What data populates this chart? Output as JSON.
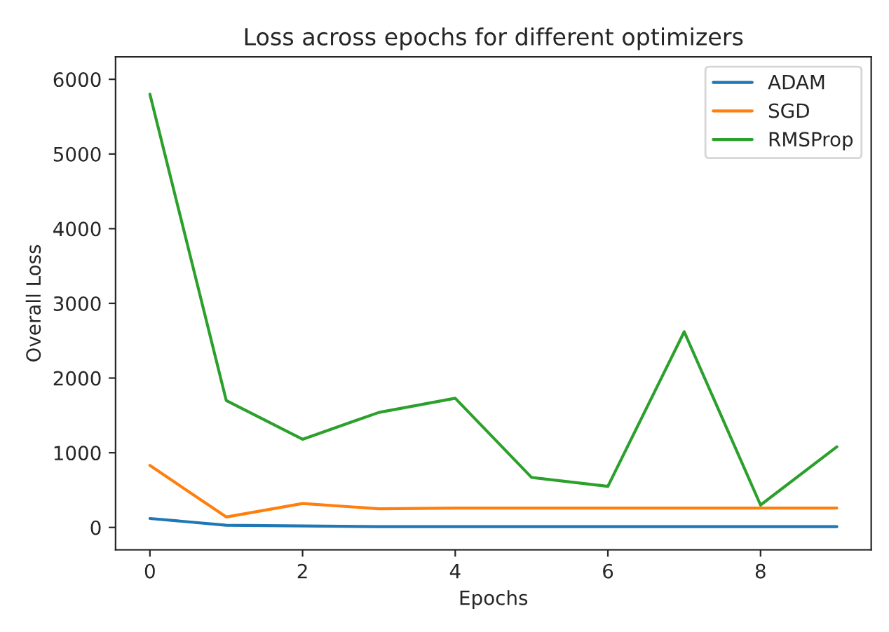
{
  "chart_data": {
    "type": "line",
    "title": "Loss across epochs for different optimizers",
    "xlabel": "Epochs",
    "ylabel": "Overall Loss",
    "x": [
      0,
      1,
      2,
      3,
      4,
      5,
      6,
      7,
      8,
      9
    ],
    "series": [
      {
        "name": "ADAM",
        "color": "#1f77b4",
        "values": [
          120,
          30,
          20,
          10,
          10,
          10,
          10,
          10,
          10,
          10
        ]
      },
      {
        "name": "SGD",
        "color": "#ff7f0e",
        "values": [
          830,
          140,
          320,
          250,
          260,
          260,
          260,
          260,
          260,
          260
        ]
      },
      {
        "name": "RMSProp",
        "color": "#2ca02c",
        "values": [
          5800,
          1700,
          1180,
          1540,
          1730,
          670,
          550,
          2620,
          300,
          1080
        ]
      }
    ],
    "xlim": [
      -0.45,
      9.45
    ],
    "ylim": [
      -300,
      6300
    ],
    "xticks": [
      0,
      2,
      4,
      6,
      8
    ],
    "yticks": [
      0,
      1000,
      2000,
      3000,
      4000,
      5000,
      6000
    ],
    "legend": "top right",
    "grid": false
  }
}
